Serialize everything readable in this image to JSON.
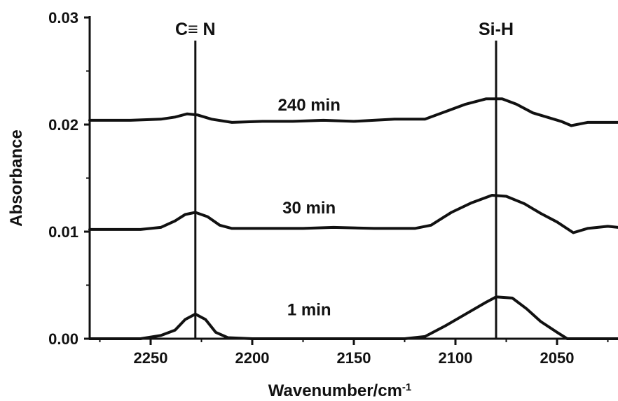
{
  "chart_data": {
    "type": "line",
    "xlabel": "Wavenumber/cm",
    "xlabel_sup": "-1",
    "ylabel": "Absorbance",
    "xlim": [
      2280,
      2020
    ],
    "ylim": [
      0.0,
      0.03
    ],
    "x_ticks": [
      2250,
      2200,
      2150,
      2100,
      2050
    ],
    "x_tick_labels": [
      "2250",
      "2200",
      "2150",
      "2100",
      "2050"
    ],
    "y_ticks": [
      0.0,
      0.01,
      0.02,
      0.03
    ],
    "y_tick_labels": [
      "0.00",
      "0.01",
      "0.02",
      "0.03"
    ],
    "vertical_lines": [
      {
        "x": 2228,
        "label": "C≡ N"
      },
      {
        "x": 2080,
        "label": "Si-H"
      }
    ],
    "series": [
      {
        "name": "1 min",
        "label_at": [
          2172,
          0.0022
        ],
        "points": [
          [
            2280,
            0.0
          ],
          [
            2255,
            0.0
          ],
          [
            2245,
            0.0003
          ],
          [
            2238,
            0.0008
          ],
          [
            2233,
            0.0018
          ],
          [
            2228,
            0.0023
          ],
          [
            2223,
            0.0018
          ],
          [
            2218,
            0.0006
          ],
          [
            2212,
            0.0001
          ],
          [
            2200,
            0.0
          ],
          [
            2180,
            0.0
          ],
          [
            2160,
            0.0
          ],
          [
            2140,
            0.0
          ],
          [
            2125,
            0.0
          ],
          [
            2115,
            0.0002
          ],
          [
            2105,
            0.0012
          ],
          [
            2095,
            0.0023
          ],
          [
            2085,
            0.0034
          ],
          [
            2080,
            0.0039
          ],
          [
            2072,
            0.0038
          ],
          [
            2065,
            0.0028
          ],
          [
            2058,
            0.0016
          ],
          [
            2050,
            0.0006
          ],
          [
            2045,
            0.0
          ],
          [
            2030,
            0.0
          ],
          [
            2020,
            0.0
          ]
        ]
      },
      {
        "name": "30 min",
        "label_at": [
          2172,
          0.0117
        ],
        "points": [
          [
            2280,
            0.0102
          ],
          [
            2255,
            0.0102
          ],
          [
            2245,
            0.0104
          ],
          [
            2238,
            0.011
          ],
          [
            2233,
            0.0116
          ],
          [
            2228,
            0.0118
          ],
          [
            2222,
            0.0114
          ],
          [
            2216,
            0.0106
          ],
          [
            2210,
            0.0103
          ],
          [
            2195,
            0.0103
          ],
          [
            2175,
            0.0103
          ],
          [
            2160,
            0.0104
          ],
          [
            2140,
            0.0103
          ],
          [
            2120,
            0.0103
          ],
          [
            2112,
            0.0106
          ],
          [
            2102,
            0.0118
          ],
          [
            2092,
            0.0127
          ],
          [
            2082,
            0.0134
          ],
          [
            2075,
            0.0133
          ],
          [
            2066,
            0.0126
          ],
          [
            2058,
            0.0117
          ],
          [
            2050,
            0.0109
          ],
          [
            2042,
            0.0099
          ],
          [
            2035,
            0.0103
          ],
          [
            2025,
            0.0105
          ],
          [
            2020,
            0.0104
          ]
        ]
      },
      {
        "name": "240 min",
        "label_at": [
          2172,
          0.0213
        ],
        "points": [
          [
            2280,
            0.0204
          ],
          [
            2260,
            0.0204
          ],
          [
            2245,
            0.0205
          ],
          [
            2238,
            0.0207
          ],
          [
            2232,
            0.021
          ],
          [
            2227,
            0.0209
          ],
          [
            2220,
            0.0205
          ],
          [
            2210,
            0.0202
          ],
          [
            2195,
            0.0203
          ],
          [
            2180,
            0.0203
          ],
          [
            2165,
            0.0204
          ],
          [
            2150,
            0.0203
          ],
          [
            2130,
            0.0205
          ],
          [
            2115,
            0.0205
          ],
          [
            2105,
            0.0212
          ],
          [
            2095,
            0.0219
          ],
          [
            2085,
            0.0224
          ],
          [
            2077,
            0.0224
          ],
          [
            2070,
            0.0219
          ],
          [
            2062,
            0.0211
          ],
          [
            2055,
            0.0207
          ],
          [
            2048,
            0.0203
          ],
          [
            2043,
            0.0199
          ],
          [
            2035,
            0.0202
          ],
          [
            2025,
            0.0202
          ],
          [
            2020,
            0.0202
          ]
        ]
      }
    ]
  }
}
